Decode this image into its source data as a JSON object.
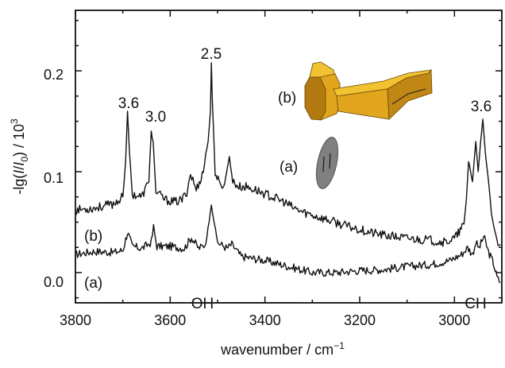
{
  "chart_data": {
    "type": "line",
    "xlabel_text": "wavenumber / cm",
    "xlabel_sup": "−1",
    "ylabel_parts": [
      "-lg(",
      "I",
      "/",
      "I",
      "0",
      ") / 10",
      "3"
    ],
    "xlim": [
      3800,
      2900
    ],
    "ylim": [
      -0.03,
      0.26
    ],
    "x_ticks": [
      3800,
      3600,
      3400,
      3200,
      3000
    ],
    "x_tick_labels": [
      "3800",
      "3600",
      "3400",
      "3200",
      "3000"
    ],
    "y_ticks": [
      0.0,
      0.1,
      0.2
    ],
    "y_tick_labels": [
      "0.0",
      "0.1",
      "0.2"
    ],
    "grid": false,
    "legend": "none",
    "series": [
      {
        "key": "a",
        "label": "(a)",
        "x": [
          3800,
          3760,
          3720,
          3700,
          3690,
          3680,
          3660,
          3640,
          3635,
          3628,
          3600,
          3570,
          3555,
          3540,
          3525,
          3513,
          3500,
          3480,
          3470,
          3450,
          3400,
          3350,
          3300,
          3250,
          3200,
          3150,
          3100,
          3050,
          3010,
          2985,
          2972,
          2962,
          2955,
          2948,
          2938,
          2928,
          2918,
          2910,
          2903
        ],
        "y": [
          0.018,
          0.021,
          0.02,
          0.022,
          0.04,
          0.026,
          0.024,
          0.03,
          0.045,
          0.026,
          0.026,
          0.024,
          0.035,
          0.024,
          0.028,
          0.067,
          0.03,
          0.024,
          0.028,
          0.016,
          0.012,
          0.006,
          0.0,
          0.0,
          0.002,
          0.003,
          0.006,
          0.008,
          0.012,
          0.018,
          0.025,
          0.018,
          0.03,
          0.024,
          0.036,
          0.02,
          0.01,
          -0.005,
          -0.01
        ]
      },
      {
        "key": "b",
        "label": "(b)",
        "x": [
          3800,
          3760,
          3740,
          3720,
          3700,
          3694,
          3690,
          3686,
          3680,
          3660,
          3645,
          3640,
          3636,
          3630,
          3610,
          3590,
          3575,
          3565,
          3557,
          3545,
          3530,
          3525,
          3520,
          3515,
          3513,
          3511,
          3505,
          3495,
          3485,
          3475,
          3468,
          3455,
          3440,
          3420,
          3400,
          3380,
          3360,
          3340,
          3320,
          3300,
          3280,
          3260,
          3240,
          3220,
          3200,
          3180,
          3150,
          3100,
          3050,
          3020,
          3000,
          2990,
          2980,
          2975,
          2970,
          2962,
          2955,
          2950,
          2945,
          2940,
          2935,
          2928,
          2922,
          2915,
          2908,
          2903
        ],
        "y": [
          0.062,
          0.064,
          0.066,
          0.068,
          0.075,
          0.11,
          0.16,
          0.12,
          0.078,
          0.075,
          0.09,
          0.143,
          0.13,
          0.08,
          0.072,
          0.07,
          0.072,
          0.08,
          0.098,
          0.082,
          0.1,
          0.118,
          0.13,
          0.16,
          0.208,
          0.17,
          0.1,
          0.086,
          0.088,
          0.115,
          0.09,
          0.085,
          0.085,
          0.082,
          0.078,
          0.074,
          0.07,
          0.064,
          0.06,
          0.057,
          0.054,
          0.051,
          0.048,
          0.045,
          0.043,
          0.04,
          0.037,
          0.034,
          0.032,
          0.03,
          0.034,
          0.04,
          0.048,
          0.072,
          0.11,
          0.09,
          0.13,
          0.1,
          0.128,
          0.152,
          0.12,
          0.09,
          0.06,
          0.04,
          0.03,
          0.028
        ]
      }
    ],
    "annotations": {
      "peaks": [
        "3.6",
        "3.0",
        "2.5",
        "3.6"
      ],
      "series_tags": [
        "(b)",
        "(a)"
      ],
      "oh_label": "OH",
      "ch_label": "CH",
      "inset_tags": [
        "(b)",
        "(a)"
      ]
    },
    "colors": {
      "line": "#111111",
      "bracket_light": "#F2C230",
      "bracket_mid": "#E1A51E",
      "bracket_dark": "#B27A10",
      "ellipse": "#808080"
    }
  }
}
